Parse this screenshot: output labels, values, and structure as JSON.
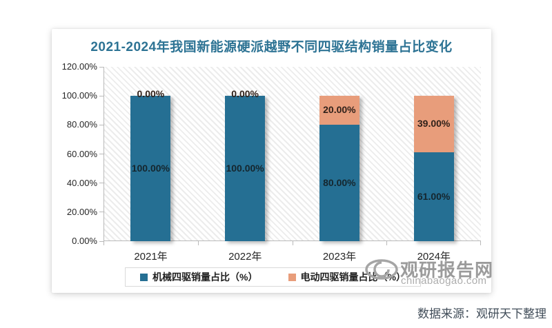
{
  "chart_card": {
    "title": "2021-2024年我国新能源硬派越野不同四驱结构销量占比变化",
    "title_color": "#2d7394"
  },
  "chart_data": {
    "type": "bar",
    "stacked": true,
    "title": "2021-2024年我国新能源硬派越野不同四驱结构销量占比变化",
    "categories": [
      "2021年",
      "2022年",
      "2023年",
      "2024年"
    ],
    "series": [
      {
        "name": "机械四驱销量占比（%）",
        "color": "#256f93",
        "label_color": "#15262e",
        "values": [
          100,
          100,
          80,
          61
        ]
      },
      {
        "name": "电动四驱销量占比（%）",
        "color": "#e89d7b",
        "label_color": "#30211a",
        "values": [
          0,
          0,
          20,
          39
        ]
      }
    ],
    "y_ticks": [
      "120.00%",
      "100.00%",
      "80.00%",
      "60.00%",
      "40.00%",
      "20.00%",
      "0.00%"
    ],
    "ylim": [
      0,
      120
    ],
    "value_label_format": "0.00%",
    "legend_position": "bottom",
    "grid": false,
    "plot_background": "diagonal-hatch"
  },
  "watermark": {
    "logo_icon": "eye-swirl-logo",
    "site_name": "观研报告网",
    "site_url": "chinabaogao.com",
    "color": "#9b9b9b",
    "url_color": "#adadad"
  },
  "footer": {
    "source_text": "数据来源：观研天下整理"
  }
}
